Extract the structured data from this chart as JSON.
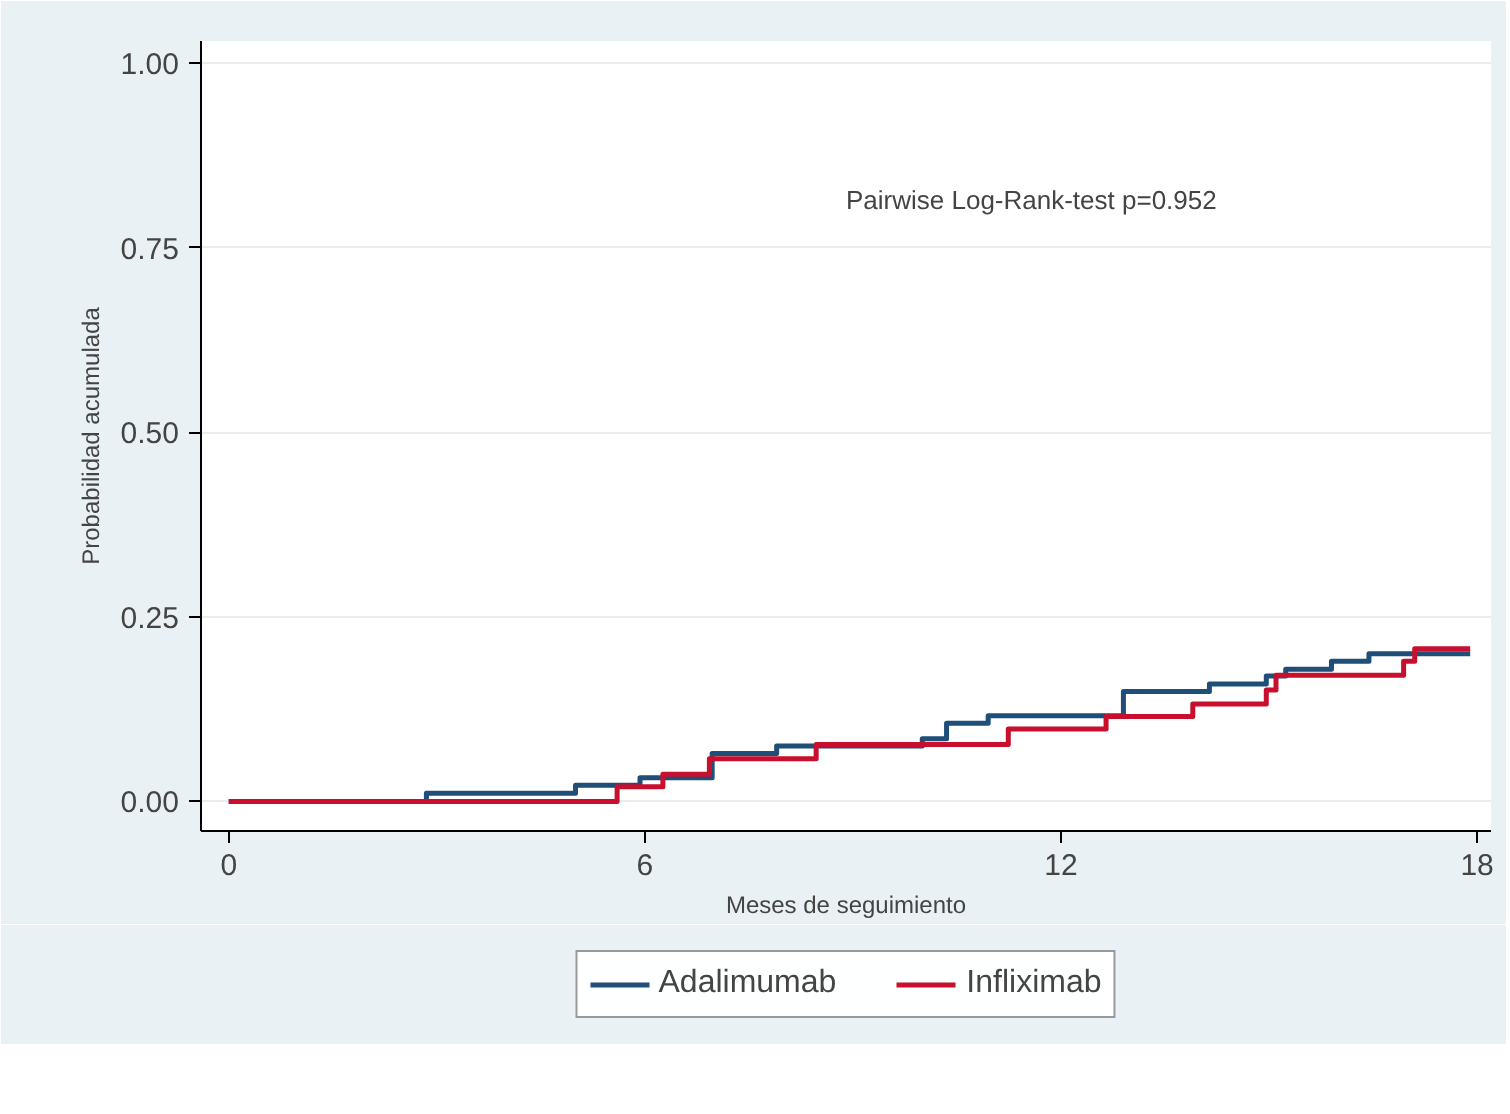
{
  "chart_data": {
    "type": "step",
    "xlabel": "Meses de seguimiento",
    "ylabel": "Probabilidad acumulada",
    "xlim": [
      -0.4,
      18.2
    ],
    "ylim": [
      -0.04,
      1.03
    ],
    "xticks": [
      0,
      6,
      12,
      18
    ],
    "yticks": [
      {
        "value": 0,
        "label": "0.00"
      },
      {
        "value": 0.25,
        "label": "0.25"
      },
      {
        "value": 0.5,
        "label": "0.50"
      },
      {
        "value": 0.75,
        "label": "0.75"
      },
      {
        "value": 1,
        "label": "1.00"
      }
    ],
    "grid": "y",
    "legend": "bottom",
    "line_style": "solid",
    "marker": "none",
    "annotations": [
      "Pairwise Log-Rank-test p=0.952"
    ],
    "series": [
      {
        "name": "Adalimumab",
        "color": "#1f4e79",
        "x": [
          0,
          2.85,
          5.0,
          5.93,
          6.97,
          7.9,
          10.0,
          10.35,
          10.95,
          12.9,
          14.14,
          14.96,
          15.24,
          15.9,
          16.44,
          17.9
        ],
        "values": [
          0,
          0.011,
          0.022,
          0.032,
          0.065,
          0.075,
          0.085,
          0.106,
          0.116,
          0.149,
          0.159,
          0.17,
          0.179,
          0.19,
          0.2,
          0.2
        ]
      },
      {
        "name": "Infliximab",
        "color": "#c8102e",
        "x": [
          0,
          5.6,
          6.26,
          6.93,
          8.47,
          11.24,
          12.65,
          13.9,
          14.96,
          15.1,
          16.94,
          17.1,
          17.9
        ],
        "values": [
          0,
          0.02,
          0.037,
          0.058,
          0.077,
          0.098,
          0.115,
          0.132,
          0.151,
          0.171,
          0.19,
          0.207,
          0.207
        ]
      }
    ]
  }
}
